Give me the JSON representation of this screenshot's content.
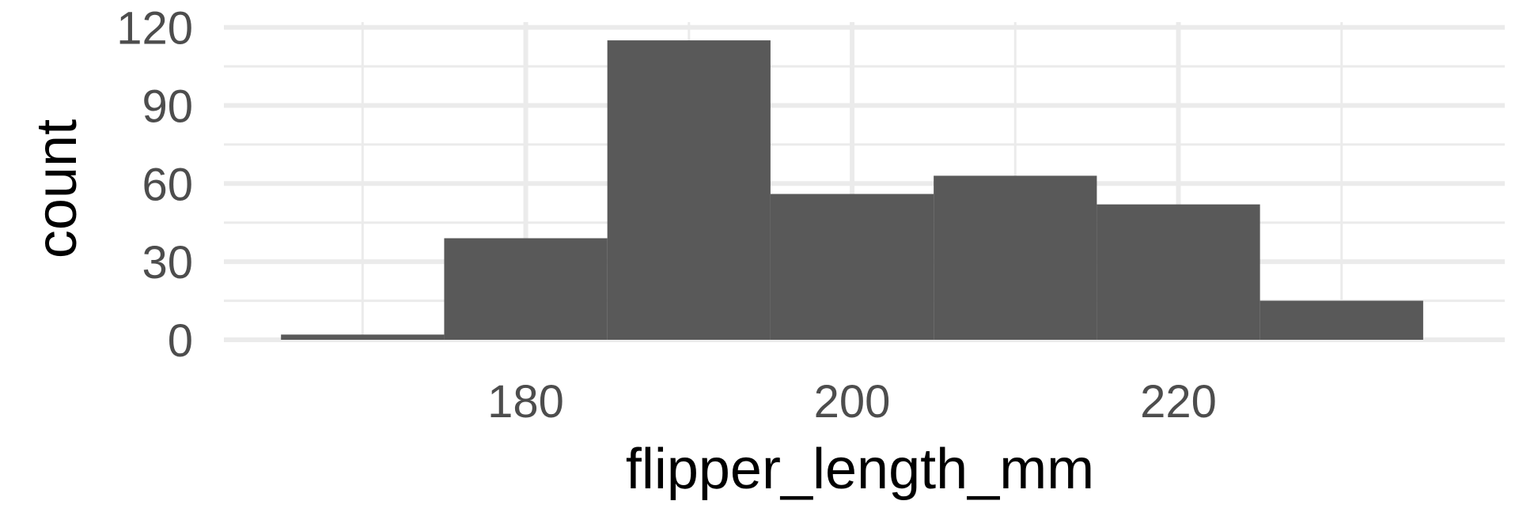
{
  "chart_data": {
    "type": "bar",
    "title": "",
    "xlabel": "flipper_length_mm",
    "ylabel": "count",
    "xlim": [
      161.5,
      240
    ],
    "ylim": [
      0,
      122
    ],
    "x_ticks": [
      180,
      200,
      220
    ],
    "x_minor_ticks": [
      170,
      190,
      210,
      230
    ],
    "y_ticks": [
      0,
      30,
      60,
      90,
      120
    ],
    "y_minor_ticks": [
      15,
      45,
      75,
      105
    ],
    "grid": true,
    "bins": [
      {
        "x0": 165,
        "x1": 175,
        "count": 2
      },
      {
        "x0": 175,
        "x1": 185,
        "count": 39
      },
      {
        "x0": 185,
        "x1": 195,
        "count": 115
      },
      {
        "x0": 195,
        "x1": 205,
        "count": 56
      },
      {
        "x0": 205,
        "x1": 215,
        "count": 63
      },
      {
        "x0": 215,
        "x1": 225,
        "count": 52
      },
      {
        "x0": 225,
        "x1": 235,
        "count": 15
      }
    ],
    "colors": {
      "bar": "#595959",
      "grid": "#ebebeb"
    }
  }
}
